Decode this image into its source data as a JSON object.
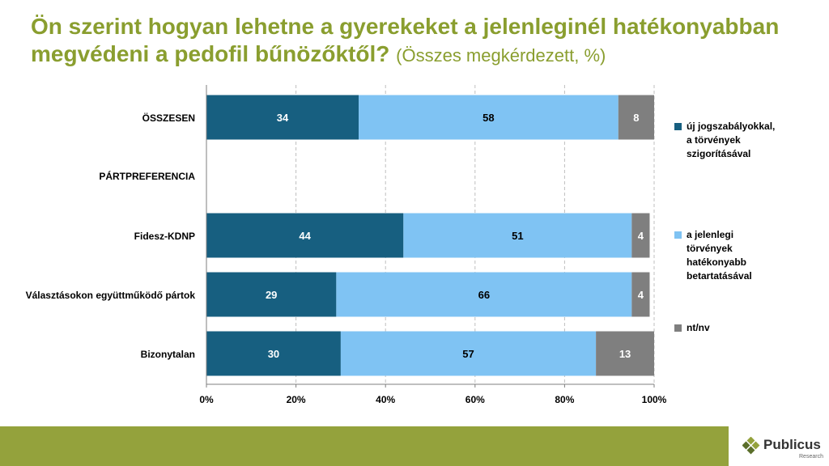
{
  "title": {
    "main": "Ön szerint hogyan lehetne a gyerekeket a jelenleginél hatékonyabban megvédeni a pedofil bűnözőktől?",
    "subtitle": "(Összes megkérdezett, %)"
  },
  "colors": {
    "title": "#8a9e2f",
    "series": [
      "#175f80",
      "#7fc3f3",
      "#7f7f7f"
    ],
    "footer": "#94a23c",
    "grid": "#bfbfbf"
  },
  "chart_data": {
    "type": "bar",
    "orientation": "horizontal",
    "stacked": true,
    "categories": [
      "ÖSSZESEN",
      "PÁRTPREFERENCIA",
      "Fidesz-KDNP",
      "Választásokon együttműködő pártok",
      "Bizonytalan"
    ],
    "series": [
      {
        "name": "új jogszabályokkal, a törvények szigorításával",
        "values": [
          34,
          null,
          44,
          29,
          30
        ],
        "labels": [
          "34",
          "",
          "44",
          "29",
          "30"
        ]
      },
      {
        "name": "a jelenlegi törvények hatékonyabb betartatásával",
        "values": [
          58,
          null,
          51,
          66,
          57
        ],
        "labels": [
          "58",
          "",
          "51",
          "66",
          "57"
        ]
      },
      {
        "name": "nt/nv",
        "values": [
          8,
          null,
          4,
          4,
          13
        ],
        "labels": [
          "8",
          "",
          "4",
          "4",
          "13"
        ]
      }
    ],
    "xlim": [
      0,
      100
    ],
    "x_ticks": [
      "0%",
      "20%",
      "40%",
      "60%",
      "80%",
      "100%"
    ],
    "grid": true,
    "legend_position": "right"
  },
  "logo": {
    "name": "Publicus",
    "tagline": "Research"
  }
}
